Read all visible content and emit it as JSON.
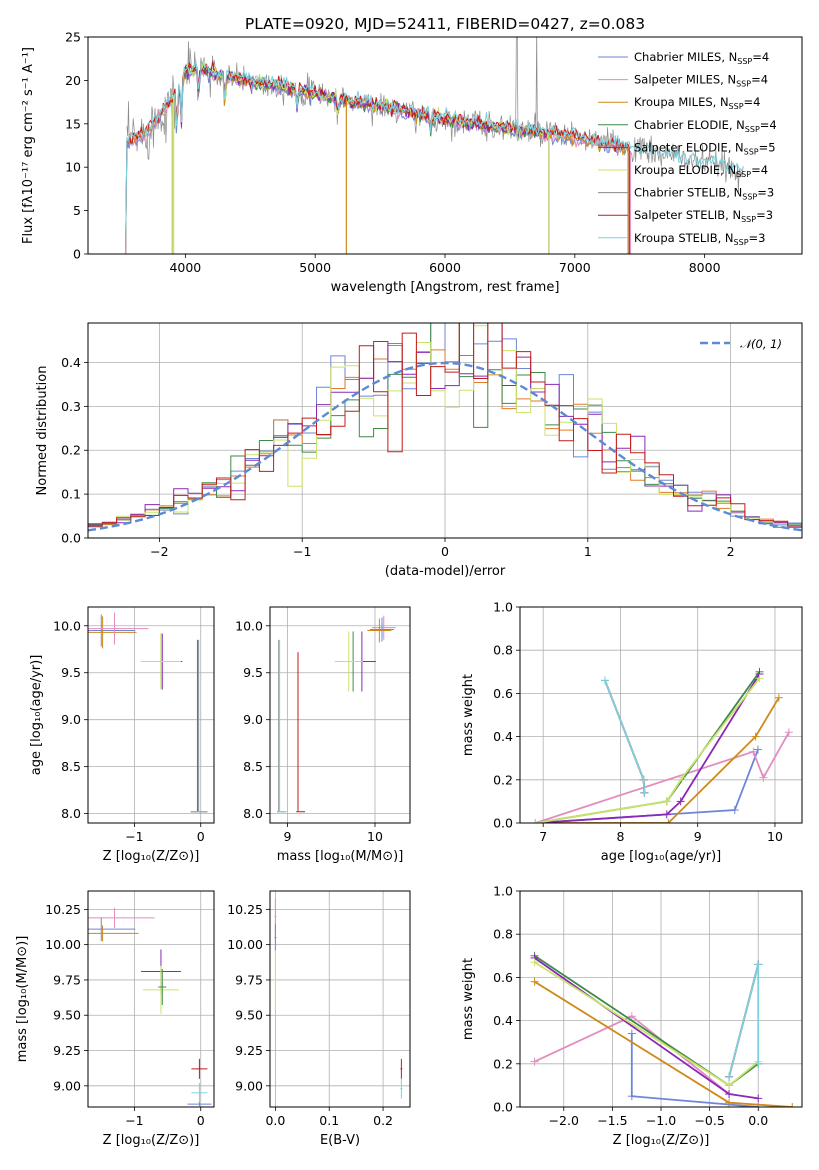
{
  "colors": {
    "chabrier_miles": "#6f86d6",
    "salpeter_miles": "#e38cc0",
    "kroupa_miles": "#cf8a1a",
    "chabrier_elodie": "#3f8a4a",
    "salpeter_elodie": "#8a28b8",
    "kroupa_elodie": "#c9e36a",
    "chabrier_stelib": "#8a8a8a",
    "salpeter_stelib": "#c21b1b",
    "kroupa_stelib": "#7ad2e0",
    "orange": "#e07a2e",
    "gaussian": "#5b8ad6"
  },
  "chart_data": [
    {
      "id": "spectrum",
      "type": "line",
      "title": "PLATE=0920, MJD=52411, FIBERID=0427, z=0.083",
      "xlabel": "wavelength [Angstrom, rest frame]",
      "ylabel": "Flux [fλ10⁻¹⁷ erg cm⁻² s⁻¹ A⁻¹]",
      "xlim": [
        3250,
        8750
      ],
      "ylim": [
        0,
        25
      ],
      "xticks": [
        "4000",
        "5000",
        "6000",
        "7000",
        "8000"
      ],
      "yticks": [
        "0",
        "5",
        "10",
        "15",
        "20",
        "25"
      ],
      "legend_position": "top-right",
      "legend": [
        {
          "name": "Chabrier MILES, N",
          "sub": "SSP",
          "tail": "=4",
          "color": "chabrier_miles"
        },
        {
          "name": "Salpeter MILES, N",
          "sub": "SSP",
          "tail": "=4",
          "color": "salpeter_miles"
        },
        {
          "name": "Kroupa MILES, N",
          "sub": "SSP",
          "tail": "=4",
          "color": "kroupa_miles"
        },
        {
          "name": "Chabrier ELODIE, N",
          "sub": "SSP",
          "tail": "=4",
          "color": "chabrier_elodie"
        },
        {
          "name": "Salpeter ELODIE, N",
          "sub": "SSP",
          "tail": "=5",
          "color": "salpeter_elodie"
        },
        {
          "name": "Kroupa ELODIE, N",
          "sub": "SSP",
          "tail": "=4",
          "color": "kroupa_elodie"
        },
        {
          "name": "Chabrier STELIB, N",
          "sub": "SSP",
          "tail": "=3",
          "color": "chabrier_stelib"
        },
        {
          "name": "Salpeter STELIB, N",
          "sub": "SSP",
          "tail": "=3",
          "color": "salpeter_stelib"
        },
        {
          "name": "Kroupa STELIB, N",
          "sub": "SSP",
          "tail": "=3",
          "color": "kroupa_stelib"
        }
      ],
      "continuum": [
        [
          3550,
          13
        ],
        [
          3700,
          14
        ],
        [
          3800,
          16
        ],
        [
          3900,
          18
        ],
        [
          4000,
          21
        ],
        [
          4100,
          21.5
        ],
        [
          4300,
          20.5
        ],
        [
          4500,
          20
        ],
        [
          4700,
          19.5
        ],
        [
          5000,
          18.5
        ],
        [
          5500,
          17
        ],
        [
          6000,
          15.5
        ],
        [
          6500,
          14.5
        ],
        [
          7000,
          13.5
        ],
        [
          7500,
          12
        ],
        [
          8000,
          10.5
        ],
        [
          8300,
          9.5
        ]
      ]
    },
    {
      "id": "residuals",
      "type": "histogram",
      "xlabel": "(data-model)/error",
      "ylabel": "Normed distribution",
      "xlim": [
        -2.5,
        2.5
      ],
      "ylim": [
        0,
        0.49
      ],
      "xticks": [
        "−2",
        "−1",
        "0",
        "1",
        "2"
      ],
      "yticks": [
        "0.0",
        "0.1",
        "0.2",
        "0.3",
        "0.4"
      ],
      "legend_position": "top-right",
      "gaussian_label": "𝒩(0, 1)",
      "bin_width": 0.1
    },
    {
      "id": "age_vs_z",
      "type": "errorbar",
      "xlabel": "Z [log₁₀(Z/Z⊙)]",
      "ylabel": "age  [log₁₀(age/yr)]",
      "xlim": [
        -1.7,
        0.2
      ],
      "ylim": [
        7.9,
        10.2
      ],
      "xticks": [
        "−1",
        "0"
      ],
      "yticks": [
        "8.0",
        "8.5",
        "9.0",
        "9.5",
        "10.0"
      ]
    },
    {
      "id": "age_vs_mass",
      "type": "errorbar",
      "xlabel": "mass [log₁₀(M/M⊙)]",
      "xlim": [
        8.8,
        10.4
      ],
      "ylim": [
        7.9,
        10.2
      ],
      "xticks": [
        "9",
        "10"
      ],
      "yticks": [
        "8.0",
        "8.5",
        "9.0",
        "9.5",
        "10.0"
      ]
    },
    {
      "id": "weight_vs_age",
      "type": "line",
      "xlabel": "age  [log₁₀(age/yr)]",
      "ylabel": "mass weight",
      "xlim": [
        6.7,
        10.35
      ],
      "ylim": [
        0,
        1
      ],
      "xticks": [
        "7",
        "8",
        "9",
        "10"
      ],
      "yticks": [
        "0.0",
        "0.2",
        "0.4",
        "0.6",
        "0.8",
        "1.0"
      ],
      "series": [
        {
          "color": "chabrier_miles",
          "points": [
            [
              6.9,
              0.0
            ],
            [
              9.48,
              0.06
            ],
            [
              9.78,
              0.34
            ]
          ]
        },
        {
          "color": "salpeter_miles",
          "points": [
            [
              6.9,
              0.0
            ],
            [
              9.72,
              0.33
            ],
            [
              9.85,
              0.21
            ],
            [
              10.18,
              0.42
            ]
          ]
        },
        {
          "color": "kroupa_miles",
          "points": [
            [
              6.9,
              0.0
            ],
            [
              8.62,
              0.0
            ],
            [
              9.75,
              0.4
            ],
            [
              10.05,
              0.58
            ]
          ]
        },
        {
          "color": "chabrier_elodie",
          "points": [
            [
              6.9,
              0.0
            ],
            [
              8.6,
              0.1
            ],
            [
              9.8,
              0.7
            ]
          ]
        },
        {
          "color": "salpeter_elodie",
          "points": [
            [
              6.9,
              0.0
            ],
            [
              8.6,
              0.04
            ],
            [
              8.78,
              0.1
            ],
            [
              9.8,
              0.69
            ]
          ]
        },
        {
          "color": "kroupa_elodie",
          "points": [
            [
              6.9,
              0.0
            ],
            [
              8.6,
              0.1
            ],
            [
              8.8,
              0.21
            ],
            [
              9.8,
              0.67
            ]
          ]
        },
        {
          "color": "chabrier_stelib",
          "points": [
            [
              7.8,
              0.66
            ],
            [
              8.3,
              0.2
            ],
            [
              8.31,
              0.14
            ]
          ]
        },
        {
          "color": "salpeter_stelib",
          "points": [
            [
              7.8,
              0.66
            ],
            [
              8.3,
              0.2
            ],
            [
              8.31,
              0.14
            ]
          ]
        },
        {
          "color": "kroupa_stelib",
          "points": [
            [
              7.8,
              0.66
            ],
            [
              8.3,
              0.2
            ],
            [
              8.31,
              0.14
            ]
          ]
        }
      ]
    },
    {
      "id": "mass_vs_z",
      "type": "errorbar",
      "xlabel": "Z [log₁₀(Z/Z⊙)]",
      "ylabel": "mass [log₁₀(M/M⊙)]",
      "xlim": [
        -1.7,
        0.2
      ],
      "ylim": [
        8.85,
        10.38
      ],
      "xticks": [
        "−1",
        "0"
      ],
      "yticks": [
        "9.00",
        "9.25",
        "9.50",
        "9.75",
        "10.00",
        "10.25"
      ]
    },
    {
      "id": "mass_vs_ebv",
      "type": "errorbar",
      "xlabel": "E(B-V)",
      "xlim": [
        -0.01,
        0.25
      ],
      "ylim": [
        8.85,
        10.38
      ],
      "xticks": [
        "0.0",
        "0.1",
        "0.2"
      ],
      "yticks": [
        "9.00",
        "9.25",
        "9.50",
        "9.75",
        "10.00",
        "10.25"
      ]
    },
    {
      "id": "weight_vs_z",
      "type": "line",
      "xlabel": "Z [log₁₀(Z/Z⊙)]",
      "ylabel": "mass weight",
      "xlim": [
        -2.45,
        0.45
      ],
      "ylim": [
        0,
        1
      ],
      "xticks": [
        "−2.0",
        "−1.5",
        "−1.0",
        "−0.5",
        "0.0"
      ],
      "yticks": [
        "0.0",
        "0.2",
        "0.4",
        "0.6",
        "0.8",
        "1.0"
      ],
      "series": [
        {
          "color": "chabrier_miles",
          "points": [
            [
              -1.3,
              0.34
            ],
            [
              -1.3,
              0.05
            ],
            [
              0.0,
              0.0
            ]
          ]
        },
        {
          "color": "salpeter_miles",
          "points": [
            [
              -2.3,
              0.21
            ],
            [
              -1.3,
              0.42
            ],
            [
              -0.3,
              0.06
            ]
          ]
        },
        {
          "color": "kroupa_miles",
          "points": [
            [
              -2.3,
              0.58
            ],
            [
              -0.3,
              0.02
            ],
            [
              0.35,
              0.0
            ]
          ]
        },
        {
          "color": "chabrier_elodie",
          "points": [
            [
              -2.3,
              0.7
            ],
            [
              -0.3,
              0.1
            ],
            [
              0.0,
              0.2
            ]
          ]
        },
        {
          "color": "salpeter_elodie",
          "points": [
            [
              -2.3,
              0.69
            ],
            [
              -0.3,
              0.06
            ],
            [
              0.0,
              0.04
            ]
          ]
        },
        {
          "color": "kroupa_elodie",
          "points": [
            [
              -2.3,
              0.67
            ],
            [
              -0.3,
              0.1
            ],
            [
              0.0,
              0.21
            ]
          ]
        },
        {
          "color": "chabrier_stelib",
          "points": [
            [
              -0.3,
              0.14
            ],
            [
              0.0,
              0.66
            ]
          ]
        },
        {
          "color": "salpeter_stelib",
          "points": [
            [
              -0.3,
              0.14
            ],
            [
              0.0,
              0.66
            ]
          ]
        },
        {
          "color": "kroupa_stelib",
          "points": [
            [
              -0.3,
              0.14
            ],
            [
              0.0,
              0.66
            ],
            [
              0.0,
              0.2
            ]
          ]
        }
      ]
    }
  ]
}
